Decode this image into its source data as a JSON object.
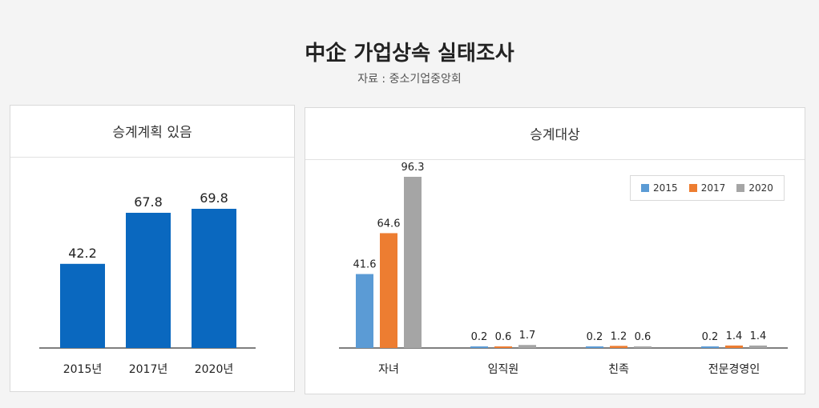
{
  "header": {
    "title": "中企 가업상속 실태조사",
    "source": "자료 : 중소기업중앙회"
  },
  "colors": {
    "left_bar": "#0a68bf",
    "series_2015": "#5b9bd5",
    "series_2017": "#ed7d31",
    "series_2020": "#a5a5a5"
  },
  "chart_data": [
    {
      "type": "bar",
      "title": "승계계획 있음",
      "categories": [
        "2015년",
        "2017년",
        "2020년"
      ],
      "values": [
        42.2,
        67.8,
        69.8
      ],
      "value_labels": [
        "42.2",
        "67.8",
        "69.8"
      ],
      "ylim": [
        0,
        80
      ],
      "grid": false,
      "legend": "none"
    },
    {
      "type": "bar",
      "title": "승계대상",
      "categories": [
        "자녀",
        "임직원",
        "친족",
        "전문경영인"
      ],
      "series": [
        {
          "name": "2015",
          "values": [
            41.6,
            0.2,
            0.2,
            0.2
          ],
          "labels": [
            "41.6",
            "0.2",
            "0.2",
            "0.2"
          ]
        },
        {
          "name": "2017",
          "values": [
            64.6,
            0.6,
            1.2,
            1.4
          ],
          "labels": [
            "64.6",
            "0.6",
            "1.2",
            "1.4"
          ]
        },
        {
          "name": "2020",
          "values": [
            96.3,
            1.7,
            0.6,
            1.4
          ],
          "labels": [
            "96.3",
            "1.7",
            "0.6",
            "1.4"
          ]
        }
      ],
      "ylim": [
        0,
        100
      ],
      "grid": false,
      "legend": "top-right"
    }
  ]
}
